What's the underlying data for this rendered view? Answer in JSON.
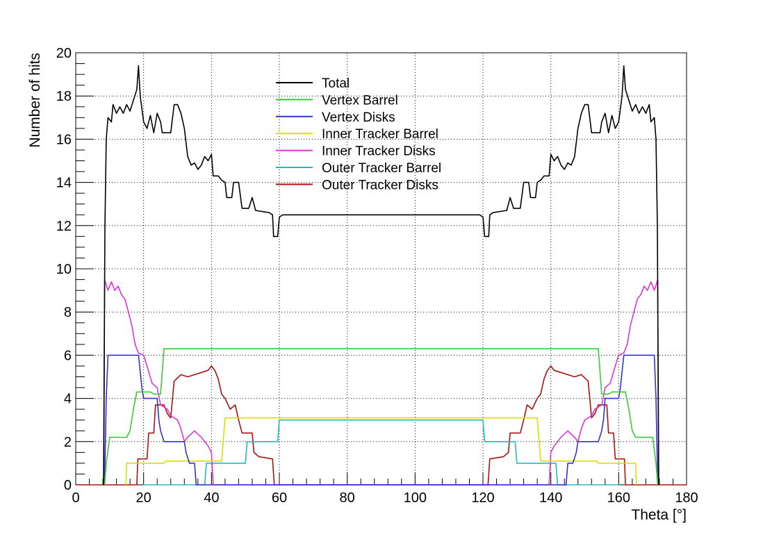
{
  "chart_data": {
    "type": "line",
    "xlabel": "Theta [°]",
    "ylabel": "Number of hits",
    "xlim": [
      0,
      180
    ],
    "ylim": [
      0,
      20
    ],
    "x_ticks": [
      "0",
      "20",
      "40",
      "60",
      "80",
      "100",
      "120",
      "140",
      "160",
      "180"
    ],
    "y_ticks": [
      "0",
      "2",
      "4",
      "6",
      "8",
      "10",
      "12",
      "14",
      "16",
      "18",
      "20"
    ],
    "grid": true,
    "legend_position": "top-center",
    "series": [
      {
        "name": "Total",
        "color": "#000000",
        "points": [
          [
            8.2,
            0
          ],
          [
            8.6,
            12
          ],
          [
            9,
            16
          ],
          [
            9.5,
            17
          ],
          [
            10.5,
            16.8
          ],
          [
            11,
            17.6
          ],
          [
            12,
            17.2
          ],
          [
            13,
            17.5
          ],
          [
            14,
            17.2
          ],
          [
            15,
            17.6
          ],
          [
            16,
            17.3
          ],
          [
            17,
            17.8
          ],
          [
            18,
            18.3
          ],
          [
            18.5,
            19.4
          ],
          [
            19,
            18
          ],
          [
            20,
            16.8
          ],
          [
            21,
            16.5
          ],
          [
            22,
            17.1
          ],
          [
            23,
            16.3
          ],
          [
            24,
            17.2
          ],
          [
            25,
            16.8
          ],
          [
            25.5,
            16.3
          ],
          [
            28,
            16.3
          ],
          [
            29,
            17.6
          ],
          [
            30,
            17.6
          ],
          [
            31,
            17.2
          ],
          [
            32,
            16.5
          ],
          [
            33,
            15.2
          ],
          [
            34,
            14.8
          ],
          [
            35,
            14.9
          ],
          [
            36,
            14.6
          ],
          [
            37,
            14.8
          ],
          [
            38,
            15.2
          ],
          [
            39,
            15
          ],
          [
            40,
            15.3
          ],
          [
            40.5,
            14.3
          ],
          [
            42,
            14.3
          ],
          [
            43,
            14.1
          ],
          [
            44,
            14
          ],
          [
            44.5,
            13.3
          ],
          [
            46,
            13.3
          ],
          [
            46.5,
            14
          ],
          [
            48,
            14
          ],
          [
            49,
            12.8
          ],
          [
            51,
            12.8
          ],
          [
            52,
            13.3
          ],
          [
            53,
            12.7
          ],
          [
            57,
            12.6
          ],
          [
            58,
            12.5
          ],
          [
            58.3,
            11.5
          ],
          [
            59.5,
            11.5
          ],
          [
            60,
            12.4
          ],
          [
            61,
            12.5
          ],
          [
            119,
            12.5
          ],
          [
            120,
            12.4
          ],
          [
            120.5,
            11.5
          ],
          [
            121.7,
            11.5
          ],
          [
            122,
            12.5
          ],
          [
            123,
            12.6
          ],
          [
            127,
            12.7
          ],
          [
            128,
            13.3
          ],
          [
            129,
            12.8
          ],
          [
            131,
            12.8
          ],
          [
            132,
            14
          ],
          [
            133.5,
            14
          ],
          [
            134,
            13.3
          ],
          [
            135.5,
            13.3
          ],
          [
            136,
            14
          ],
          [
            137,
            14.1
          ],
          [
            138,
            14.3
          ],
          [
            139.5,
            14.3
          ],
          [
            140,
            15.3
          ],
          [
            141,
            15
          ],
          [
            142,
            15.2
          ],
          [
            143,
            14.8
          ],
          [
            144,
            14.6
          ],
          [
            145,
            14.9
          ],
          [
            146,
            14.8
          ],
          [
            147,
            15.2
          ],
          [
            148,
            16.5
          ],
          [
            149,
            17.2
          ],
          [
            150,
            17.6
          ],
          [
            151,
            17.6
          ],
          [
            152,
            16.3
          ],
          [
            154.5,
            16.3
          ],
          [
            155,
            16.8
          ],
          [
            156,
            17.2
          ],
          [
            157,
            16.3
          ],
          [
            158,
            17.1
          ],
          [
            159,
            16.5
          ],
          [
            160,
            16.8
          ],
          [
            161,
            18
          ],
          [
            161.5,
            19.4
          ],
          [
            162,
            18.3
          ],
          [
            163,
            17.8
          ],
          [
            164,
            17.3
          ],
          [
            165,
            17.6
          ],
          [
            166,
            17.2
          ],
          [
            167,
            17.5
          ],
          [
            168,
            17.2
          ],
          [
            169,
            17.6
          ],
          [
            169.5,
            16.8
          ],
          [
            170.5,
            17
          ],
          [
            171,
            16
          ],
          [
            171.4,
            12
          ],
          [
            171.8,
            0
          ]
        ]
      },
      {
        "name": "Vertex Barrel",
        "color": "#33cc33",
        "points": [
          [
            8.5,
            0
          ],
          [
            9,
            1
          ],
          [
            10,
            2.2
          ],
          [
            15,
            2.2
          ],
          [
            16,
            2.5
          ],
          [
            17,
            3.5
          ],
          [
            18,
            4.3
          ],
          [
            22,
            4.3
          ],
          [
            23,
            4.2
          ],
          [
            25,
            4.2
          ],
          [
            26,
            6.3
          ],
          [
            154,
            6.3
          ],
          [
            155,
            4.2
          ],
          [
            157,
            4.2
          ],
          [
            158,
            4.3
          ],
          [
            162,
            4.3
          ],
          [
            163,
            3.5
          ],
          [
            164,
            2.5
          ],
          [
            165,
            2.2
          ],
          [
            170,
            2.2
          ],
          [
            171,
            1
          ],
          [
            171.5,
            0
          ]
        ]
      },
      {
        "name": "Vertex Disks",
        "color": "#3333cc",
        "points": [
          [
            8.5,
            0
          ],
          [
            9,
            4
          ],
          [
            9.5,
            6
          ],
          [
            18.5,
            6
          ],
          [
            19.5,
            4.5
          ],
          [
            20,
            4
          ],
          [
            24,
            4
          ],
          [
            24.5,
            3
          ],
          [
            25,
            2.5
          ],
          [
            26,
            2
          ],
          [
            32,
            2
          ],
          [
            32.5,
            1.5
          ],
          [
            33.5,
            1
          ],
          [
            35,
            1
          ],
          [
            35.5,
            0
          ],
          [
            144.5,
            0
          ],
          [
            145,
            1
          ],
          [
            146.5,
            1
          ],
          [
            147.5,
            1.5
          ],
          [
            148,
            2
          ],
          [
            154,
            2
          ],
          [
            155,
            2.5
          ],
          [
            155.5,
            3
          ],
          [
            156,
            4
          ],
          [
            160,
            4
          ],
          [
            160.5,
            4.5
          ],
          [
            161.5,
            6
          ],
          [
            170.5,
            6
          ],
          [
            171,
            4
          ],
          [
            171.5,
            0
          ]
        ]
      },
      {
        "name": "Inner Tracker Barrel",
        "color": "#dddd00",
        "points": [
          [
            14.8,
            0
          ],
          [
            15,
            1
          ],
          [
            26,
            1
          ],
          [
            26.5,
            1.1
          ],
          [
            43,
            1.1
          ],
          [
            43.5,
            2.1
          ],
          [
            44,
            3.1
          ],
          [
            136,
            3.1
          ],
          [
            136.5,
            2.1
          ],
          [
            137,
            1.1
          ],
          [
            153.5,
            1.1
          ],
          [
            154,
            1
          ],
          [
            165,
            1
          ],
          [
            165.2,
            0
          ]
        ]
      },
      {
        "name": "Inner Tracker Disks",
        "color": "#dd33dd",
        "points": [
          [
            8.3,
            0
          ],
          [
            8.5,
            9.5
          ],
          [
            9.5,
            9
          ],
          [
            10.5,
            9.4
          ],
          [
            11.5,
            9
          ],
          [
            12.5,
            9.2
          ],
          [
            13.5,
            8.8
          ],
          [
            14.5,
            8.6
          ],
          [
            15.5,
            8
          ],
          [
            16.5,
            7.4
          ],
          [
            17.5,
            6.5
          ],
          [
            18.5,
            6.1
          ],
          [
            20,
            6
          ],
          [
            21,
            5.5
          ],
          [
            22.5,
            4.7
          ],
          [
            24,
            4.5
          ],
          [
            25,
            3.7
          ],
          [
            27,
            3.5
          ],
          [
            28,
            3.2
          ],
          [
            30,
            3
          ],
          [
            31,
            2.6
          ],
          [
            32,
            2
          ],
          [
            33,
            2.2
          ],
          [
            35,
            2.5
          ],
          [
            37,
            2.2
          ],
          [
            38,
            2
          ],
          [
            39,
            1.8
          ],
          [
            40,
            1.5
          ],
          [
            40.5,
            0
          ],
          [
            139.5,
            0
          ],
          [
            140,
            1.5
          ],
          [
            141,
            1.8
          ],
          [
            142,
            2
          ],
          [
            143,
            2.2
          ],
          [
            145,
            2.5
          ],
          [
            147,
            2.2
          ],
          [
            148,
            2
          ],
          [
            149,
            2.6
          ],
          [
            150,
            3
          ],
          [
            152,
            3.2
          ],
          [
            153,
            3.5
          ],
          [
            155,
            3.7
          ],
          [
            156,
            4.5
          ],
          [
            157.5,
            4.7
          ],
          [
            159,
            5.5
          ],
          [
            160,
            6
          ],
          [
            161.5,
            6.1
          ],
          [
            162.5,
            6.5
          ],
          [
            163.5,
            7.4
          ],
          [
            164.5,
            8
          ],
          [
            165.5,
            8.6
          ],
          [
            166.5,
            8.8
          ],
          [
            167.5,
            9.2
          ],
          [
            168.5,
            9
          ],
          [
            169.5,
            9.4
          ],
          [
            170.5,
            9
          ],
          [
            171.5,
            9.5
          ],
          [
            171.7,
            0
          ]
        ]
      },
      {
        "name": "Outer Tracker Barrel",
        "color": "#22bbbb",
        "points": [
          [
            19.8,
            0
          ],
          [
            20,
            0
          ],
          [
            38,
            0
          ],
          [
            38.5,
            1
          ],
          [
            50,
            1
          ],
          [
            50.5,
            2
          ],
          [
            59.5,
            2
          ],
          [
            60,
            3
          ],
          [
            120,
            3
          ],
          [
            120.5,
            2
          ],
          [
            129.5,
            2
          ],
          [
            130,
            1
          ],
          [
            141.5,
            1
          ],
          [
            142,
            0
          ],
          [
            160,
            0
          ],
          [
            160.2,
            0
          ]
        ]
      },
      {
        "name": "Outer Tracker Disks",
        "color": "#aa1111",
        "points": [
          [
            0,
            0
          ],
          [
            18,
            0
          ],
          [
            18.3,
            1.2
          ],
          [
            21,
            1.2
          ],
          [
            21.5,
            2.4
          ],
          [
            23,
            2.4
          ],
          [
            23.5,
            3.7
          ],
          [
            26,
            3.7
          ],
          [
            27,
            3.3
          ],
          [
            28,
            3.1
          ],
          [
            29,
            4.8
          ],
          [
            31,
            5.1
          ],
          [
            33,
            5
          ],
          [
            35,
            5.1
          ],
          [
            37,
            5.2
          ],
          [
            39,
            5.3
          ],
          [
            40,
            5.5
          ],
          [
            41,
            5.3
          ],
          [
            42,
            4.9
          ],
          [
            43,
            4.2
          ],
          [
            44,
            4
          ],
          [
            45.5,
            3.5
          ],
          [
            47,
            3.7
          ],
          [
            48,
            3
          ],
          [
            49,
            2.4
          ],
          [
            52,
            2.4
          ],
          [
            52.5,
            1.5
          ],
          [
            54,
            1.3
          ],
          [
            58,
            1.2
          ],
          [
            58.5,
            0
          ],
          [
            121.5,
            0
          ],
          [
            122,
            1.2
          ],
          [
            126,
            1.3
          ],
          [
            127.5,
            1.5
          ],
          [
            128,
            2.4
          ],
          [
            131,
            2.4
          ],
          [
            132,
            3
          ],
          [
            133,
            3.7
          ],
          [
            134.5,
            3.5
          ],
          [
            136,
            4
          ],
          [
            137,
            4.2
          ],
          [
            138,
            4.9
          ],
          [
            139,
            5.3
          ],
          [
            140,
            5.5
          ],
          [
            141,
            5.3
          ],
          [
            143,
            5.2
          ],
          [
            145,
            5.1
          ],
          [
            147,
            5
          ],
          [
            149,
            5.1
          ],
          [
            151,
            4.8
          ],
          [
            152,
            3.1
          ],
          [
            153,
            3.3
          ],
          [
            154,
            3.7
          ],
          [
            156.5,
            3.7
          ],
          [
            157,
            2.4
          ],
          [
            158.5,
            2.4
          ],
          [
            159,
            1.2
          ],
          [
            161.7,
            1.2
          ],
          [
            162,
            0
          ],
          [
            180,
            0
          ]
        ]
      }
    ]
  }
}
